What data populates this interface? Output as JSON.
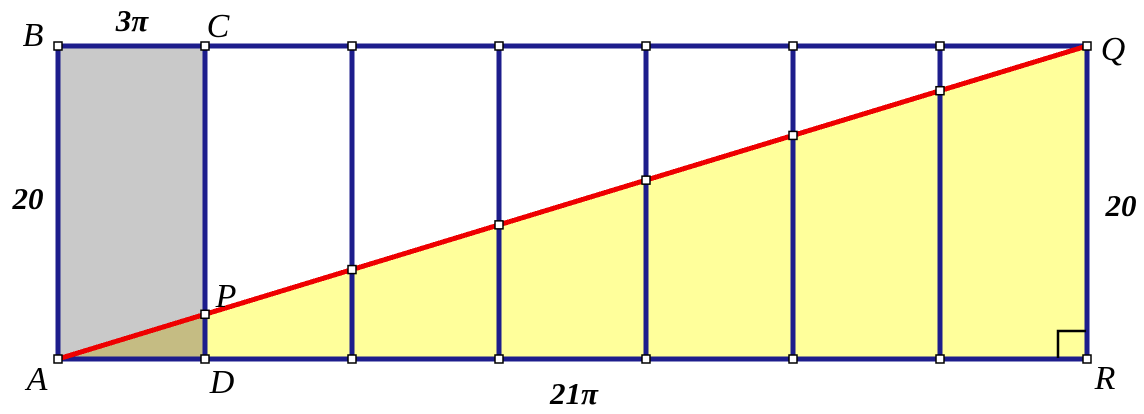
{
  "figure": {
    "type": "geometry-diagram",
    "labels": {
      "b": "B",
      "c": "C",
      "q": "Q",
      "a": "A",
      "d": "D",
      "p": "P",
      "r": "R",
      "top_segment_length": "3π",
      "bottom_length": "21π",
      "left_height": "20",
      "right_height": "20"
    },
    "colors": {
      "border": "#1d1d8c",
      "diagonal": "#ee0000",
      "triangle_fill": "#ffff9b",
      "rectangle_fill": "#c9c9c9",
      "overlap_fill": "#c5bc83",
      "marker_fill": "#ffffff",
      "marker_stroke": "#000000",
      "angle_mark": "#000000",
      "label_color": "#000000",
      "background": "#ffffff"
    }
  }
}
